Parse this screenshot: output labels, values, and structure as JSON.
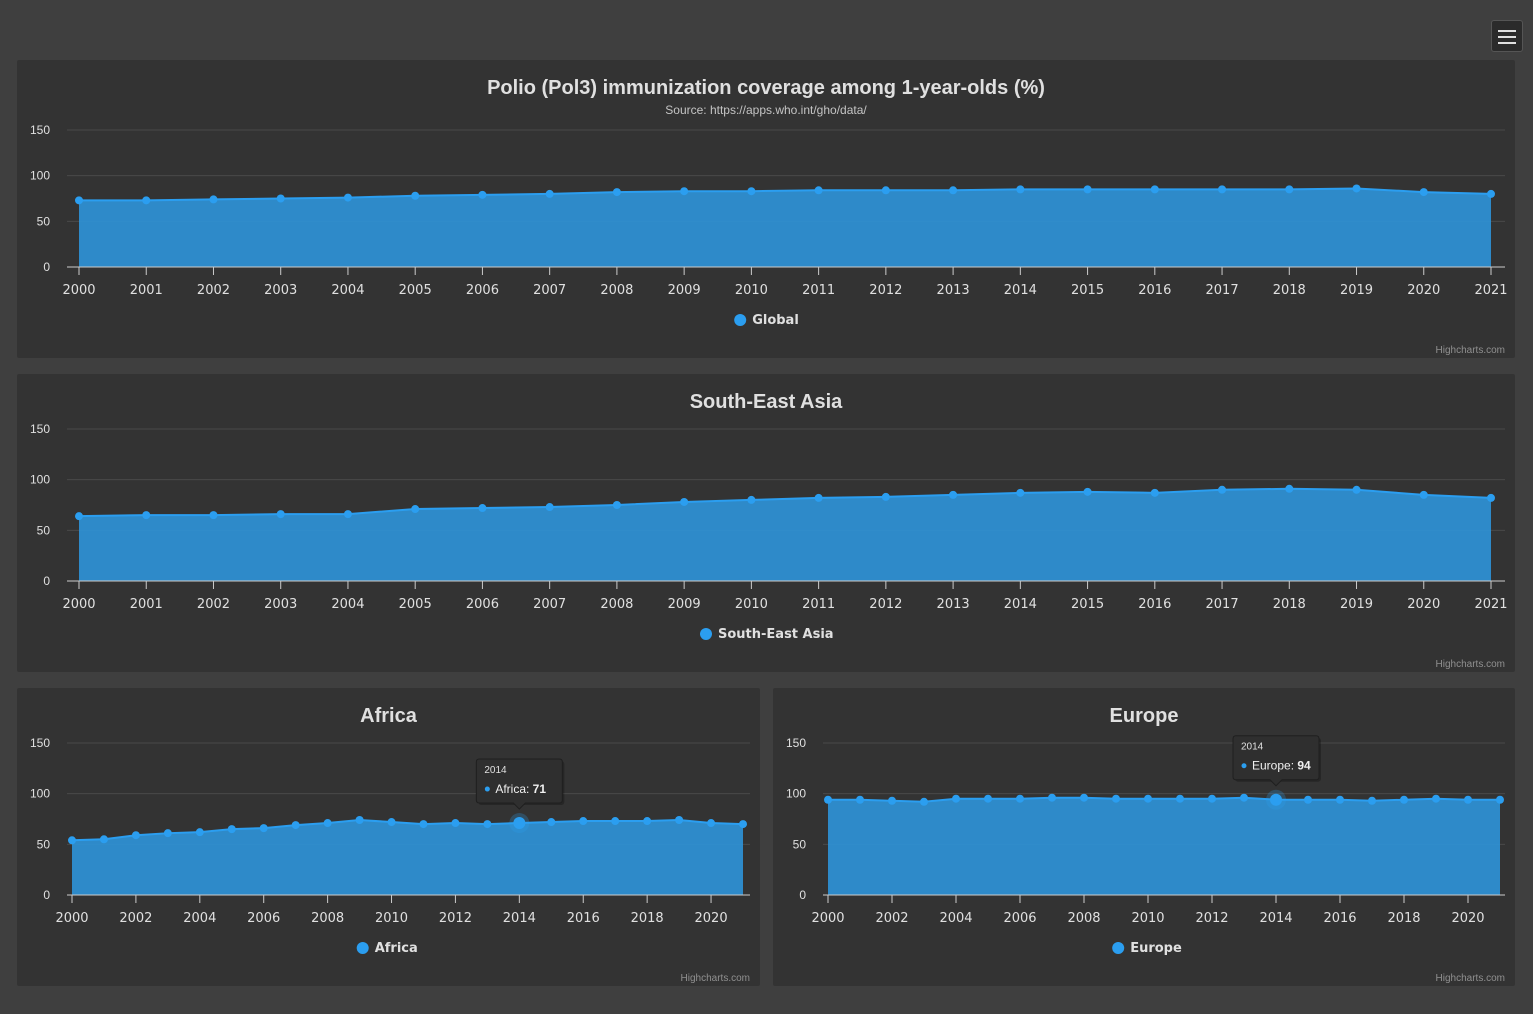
{
  "menu": {
    "icon": "hamburger-menu-icon"
  },
  "colors": {
    "series": "#2b9ef0",
    "area": "#2e8fd2",
    "grid": "#4a4a4a",
    "panel": "#333333",
    "background": "#3f3f3f"
  },
  "credits": "Highcharts.com",
  "chart_data": [
    {
      "id": "global",
      "type": "area",
      "title": "Polio (Pol3) immunization coverage among 1-year-olds (%)",
      "subtitle": "Source: https://apps.who.int/gho/data/",
      "yticks": [
        0,
        50,
        100,
        150
      ],
      "ylim": [
        0,
        150
      ],
      "xlim": [
        2000,
        2021
      ],
      "xticks": [
        2000,
        2001,
        2002,
        2003,
        2004,
        2005,
        2006,
        2007,
        2008,
        2009,
        2010,
        2011,
        2012,
        2013,
        2014,
        2015,
        2016,
        2017,
        2018,
        2019,
        2020,
        2021
      ],
      "x": [
        2000,
        2001,
        2002,
        2003,
        2004,
        2005,
        2006,
        2007,
        2008,
        2009,
        2010,
        2011,
        2012,
        2013,
        2014,
        2015,
        2016,
        2017,
        2018,
        2019,
        2020,
        2021
      ],
      "series": [
        {
          "name": "Global",
          "values": [
            73,
            73,
            74,
            75,
            76,
            78,
            79,
            80,
            82,
            83,
            83,
            84,
            84,
            84,
            85,
            85,
            85,
            85,
            85,
            86,
            82,
            80
          ]
        }
      ],
      "grid": true,
      "legend": "bottom-center"
    },
    {
      "id": "sea",
      "type": "area",
      "title": "South-East Asia",
      "subtitle": "",
      "yticks": [
        0,
        50,
        100,
        150
      ],
      "ylim": [
        0,
        150
      ],
      "xlim": [
        2000,
        2021
      ],
      "xticks": [
        2000,
        2001,
        2002,
        2003,
        2004,
        2005,
        2006,
        2007,
        2008,
        2009,
        2010,
        2011,
        2012,
        2013,
        2014,
        2015,
        2016,
        2017,
        2018,
        2019,
        2020,
        2021
      ],
      "x": [
        2000,
        2001,
        2002,
        2003,
        2004,
        2005,
        2006,
        2007,
        2008,
        2009,
        2010,
        2011,
        2012,
        2013,
        2014,
        2015,
        2016,
        2017,
        2018,
        2019,
        2020,
        2021
      ],
      "series": [
        {
          "name": "South-East Asia",
          "values": [
            64,
            65,
            65,
            66,
            66,
            71,
            72,
            73,
            75,
            78,
            80,
            82,
            83,
            85,
            87,
            88,
            87,
            90,
            91,
            90,
            85,
            82
          ]
        }
      ],
      "grid": true,
      "legend": "bottom-center"
    },
    {
      "id": "africa",
      "type": "area",
      "title": "Africa",
      "subtitle": "",
      "yticks": [
        0,
        50,
        100,
        150
      ],
      "ylim": [
        0,
        150
      ],
      "xlim": [
        2000,
        2021
      ],
      "xticks": [
        2000,
        2002,
        2004,
        2006,
        2008,
        2010,
        2012,
        2014,
        2016,
        2018,
        2020
      ],
      "x": [
        2000,
        2001,
        2002,
        2003,
        2004,
        2005,
        2006,
        2007,
        2008,
        2009,
        2010,
        2011,
        2012,
        2013,
        2014,
        2015,
        2016,
        2017,
        2018,
        2019,
        2020,
        2021
      ],
      "series": [
        {
          "name": "Africa",
          "values": [
            54,
            55,
            59,
            61,
            62,
            65,
            66,
            69,
            71,
            74,
            72,
            70,
            71,
            70,
            71,
            72,
            73,
            73,
            73,
            74,
            71,
            70
          ]
        }
      ],
      "grid": true,
      "legend": "bottom-center",
      "tooltip": {
        "x": 2014,
        "header": "2014",
        "label": "Africa: ",
        "value": "71"
      }
    },
    {
      "id": "europe",
      "type": "area",
      "title": "Europe",
      "subtitle": "",
      "yticks": [
        0,
        50,
        100,
        150
      ],
      "ylim": [
        0,
        150
      ],
      "xlim": [
        2000,
        2021
      ],
      "xticks": [
        2000,
        2002,
        2004,
        2006,
        2008,
        2010,
        2012,
        2014,
        2016,
        2018,
        2020
      ],
      "x": [
        2000,
        2001,
        2002,
        2003,
        2004,
        2005,
        2006,
        2007,
        2008,
        2009,
        2010,
        2011,
        2012,
        2013,
        2014,
        2015,
        2016,
        2017,
        2018,
        2019,
        2020,
        2021
      ],
      "series": [
        {
          "name": "Europe",
          "values": [
            94,
            94,
            93,
            92,
            95,
            95,
            95,
            96,
            96,
            95,
            95,
            95,
            95,
            96,
            94,
            94,
            94,
            93,
            94,
            95,
            94,
            94
          ]
        }
      ],
      "grid": true,
      "legend": "bottom-center",
      "tooltip": {
        "x": 2014,
        "header": "2014",
        "label": "Europe: ",
        "value": "94"
      }
    }
  ]
}
